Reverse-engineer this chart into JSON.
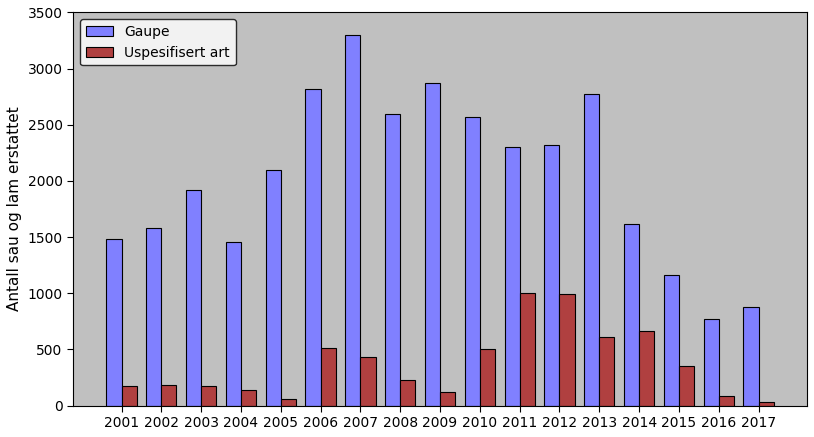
{
  "years": [
    "2001",
    "2002",
    "2003",
    "2004",
    "2005",
    "2006",
    "2007",
    "2008",
    "2009",
    "2010",
    "2011",
    "2012",
    "2013",
    "2014",
    "2015",
    "2016",
    "2017"
  ],
  "gaupe": [
    1480,
    1580,
    1920,
    1460,
    2100,
    2820,
    3300,
    2600,
    2870,
    2570,
    2300,
    2320,
    2770,
    1620,
    1160,
    770,
    880
  ],
  "uspesifisert": [
    175,
    185,
    175,
    140,
    60,
    510,
    430,
    230,
    120,
    500,
    1000,
    990,
    610,
    660,
    350,
    90,
    30
  ],
  "gaupe_color": "#8080ff",
  "uspesifisert_color": "#b04040",
  "ylabel": "Antall sau og lam erstattet",
  "ylim": [
    0,
    3500
  ],
  "yticks": [
    0,
    500,
    1000,
    1500,
    2000,
    2500,
    3000,
    3500
  ],
  "legend_gaupe": "Gaupe",
  "legend_uspesifisert": "Uspesifisert art",
  "background_color": "#c0c0c0",
  "bar_edge_color": "#000000",
  "bar_width": 0.38,
  "font_size": 10,
  "ylabel_fontsize": 11
}
